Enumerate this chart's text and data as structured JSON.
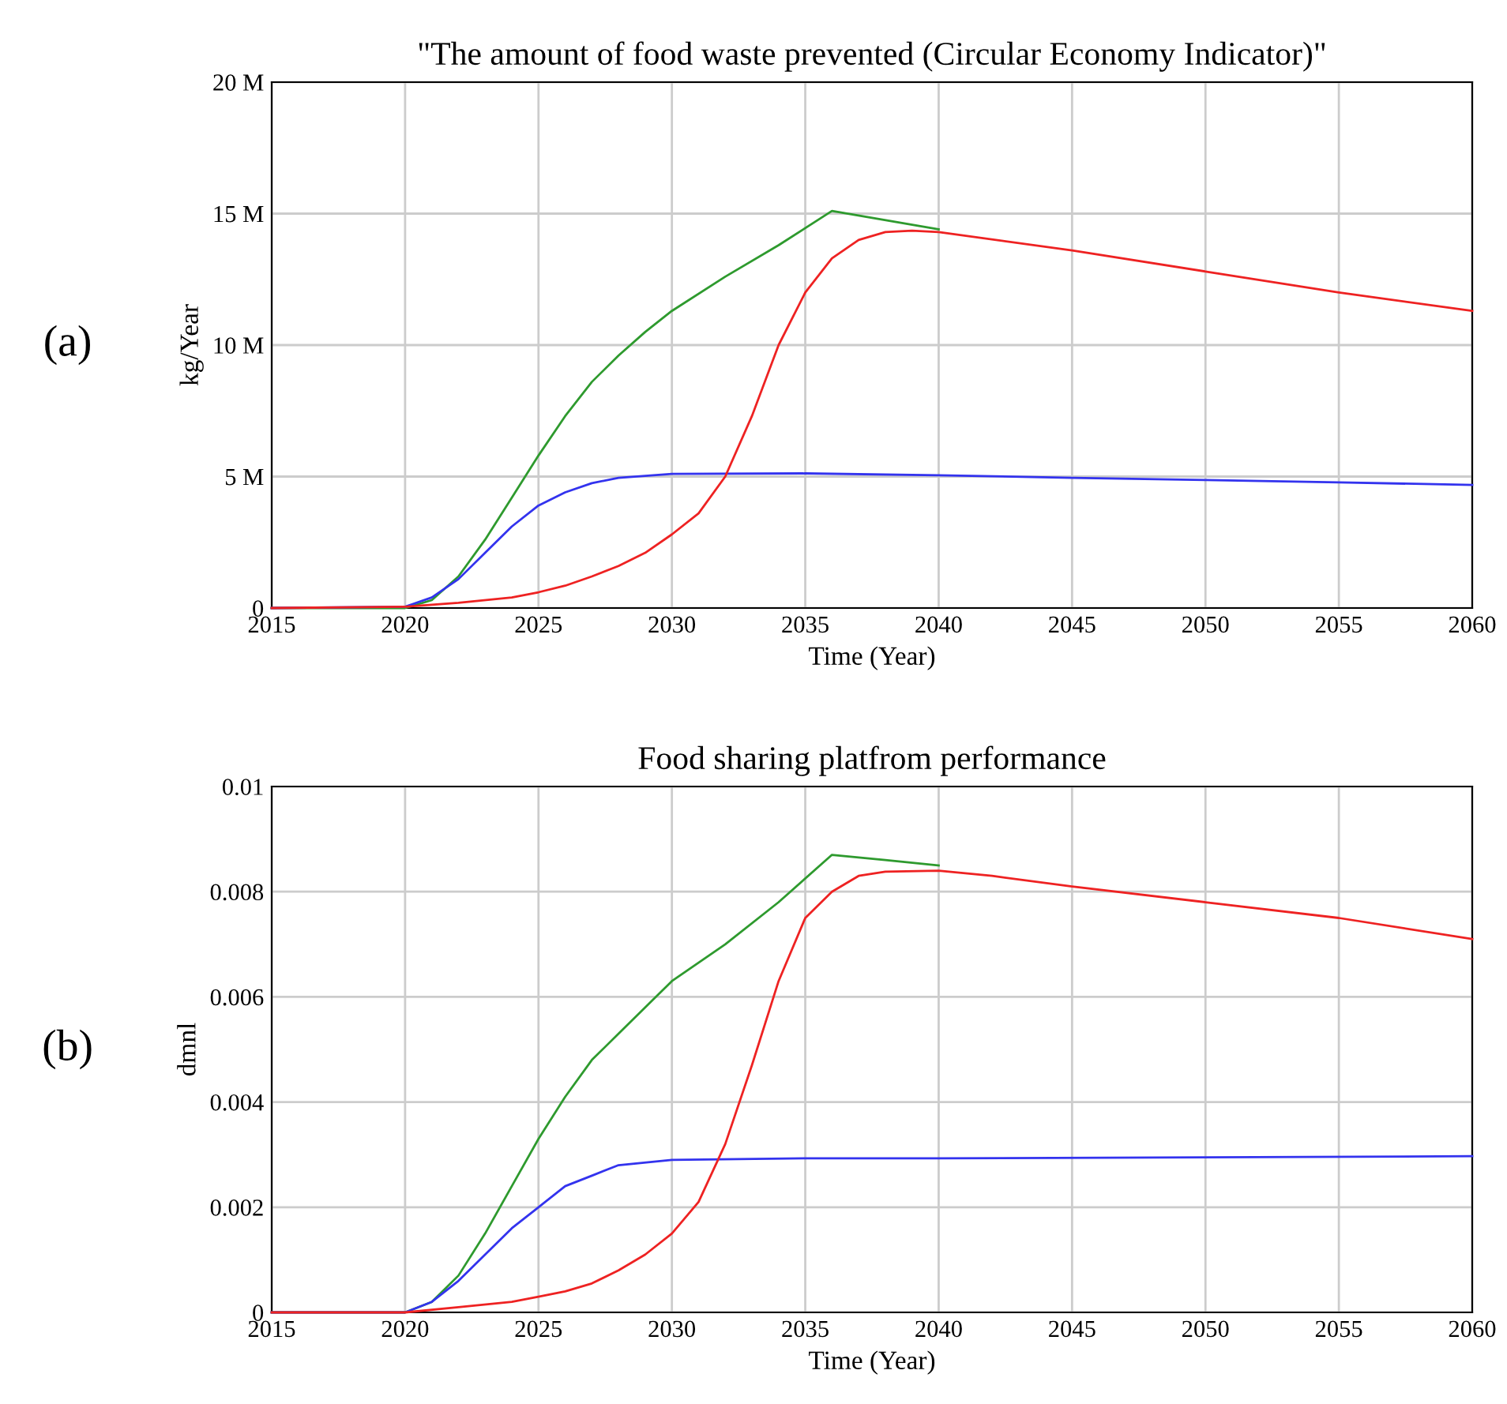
{
  "chart_data": [
    {
      "type": "line",
      "title": "\"The amount of food waste prevented (Circular Economy Indicator)\"",
      "xlabel": "Time (Year)",
      "ylabel": "kg/Year",
      "annotations": [
        "(a)"
      ],
      "grid": true,
      "legend": false,
      "xlim": [
        2015,
        2060
      ],
      "xticks": [
        2015,
        2020,
        2025,
        2030,
        2035,
        2040,
        2045,
        2050,
        2055,
        2060
      ],
      "ylim": [
        0,
        20000000
      ],
      "yticks": [
        {
          "value": 0,
          "label": "0"
        },
        {
          "value": 5000000,
          "label": "5 M"
        },
        {
          "value": 10000000,
          "label": "10 M"
        },
        {
          "value": 15000000,
          "label": "15 M"
        },
        {
          "value": 20000000,
          "label": "20 M"
        }
      ],
      "series": [
        {
          "color": "#2e9a2e",
          "x": [
            2015,
            2020,
            2021,
            2022,
            2023,
            2024,
            2025,
            2026,
            2027,
            2028,
            2029,
            2030,
            2032,
            2034,
            2036,
            2040
          ],
          "values": [
            0,
            0,
            300000,
            1200000,
            2600000,
            4200000,
            5800000,
            7300000,
            8600000,
            9600000,
            10500000,
            11300000,
            12600000,
            13800000,
            15100000,
            14400000
          ]
        },
        {
          "color": "#3333ee",
          "x": [
            2015,
            2020,
            2021,
            2022,
            2023,
            2024,
            2025,
            2026,
            2027,
            2028,
            2030,
            2035,
            2040,
            2045,
            2050,
            2055,
            2060
          ],
          "values": [
            0,
            50000,
            400000,
            1100000,
            2100000,
            3100000,
            3900000,
            4400000,
            4750000,
            4950000,
            5100000,
            5120000,
            5050000,
            4950000,
            4870000,
            4780000,
            4680000
          ]
        },
        {
          "color": "#ee2222",
          "x": [
            2015,
            2020,
            2022,
            2024,
            2025,
            2026,
            2027,
            2028,
            2029,
            2030,
            2031,
            2032,
            2033,
            2034,
            2035,
            2036,
            2037,
            2038,
            2039,
            2040,
            2045,
            2050,
            2055,
            2060
          ],
          "values": [
            0,
            50000,
            200000,
            400000,
            600000,
            850000,
            1200000,
            1600000,
            2100000,
            2800000,
            3600000,
            5000000,
            7300000,
            10000000,
            12000000,
            13300000,
            14000000,
            14300000,
            14350000,
            14300000,
            13600000,
            12800000,
            12000000,
            11300000
          ]
        }
      ]
    },
    {
      "type": "line",
      "title": "Food sharing platfrom performance",
      "xlabel": "Time (Year)",
      "ylabel": "dmnl",
      "annotations": [
        "(b)"
      ],
      "grid": true,
      "legend": false,
      "xlim": [
        2015,
        2060
      ],
      "xticks": [
        2015,
        2020,
        2025,
        2030,
        2035,
        2040,
        2045,
        2050,
        2055,
        2060
      ],
      "ylim": [
        0,
        0.01
      ],
      "yticks": [
        0,
        0.002,
        0.004,
        0.006,
        0.008,
        0.01
      ],
      "series": [
        {
          "color": "#2e9a2e",
          "x": [
            2015,
            2020,
            2021,
            2022,
            2023,
            2024,
            2025,
            2026,
            2027,
            2028,
            2029,
            2030,
            2032,
            2034,
            2036,
            2038,
            2040
          ],
          "values": [
            0,
            0,
            0.0002,
            0.0007,
            0.0015,
            0.0024,
            0.0033,
            0.0041,
            0.0048,
            0.0053,
            0.0058,
            0.0063,
            0.007,
            0.0078,
            0.0087,
            0.0086,
            0.0085
          ]
        },
        {
          "color": "#3333ee",
          "x": [
            2015,
            2020,
            2021,
            2022,
            2023,
            2024,
            2025,
            2026,
            2027,
            2028,
            2030,
            2035,
            2040,
            2050,
            2060
          ],
          "values": [
            0,
            0,
            0.0002,
            0.0006,
            0.0011,
            0.0016,
            0.002,
            0.0024,
            0.0026,
            0.0028,
            0.0029,
            0.00293,
            0.00293,
            0.00295,
            0.00297
          ]
        },
        {
          "color": "#ee2222",
          "x": [
            2015,
            2020,
            2022,
            2024,
            2025,
            2026,
            2027,
            2028,
            2029,
            2030,
            2031,
            2032,
            2033,
            2034,
            2035,
            2036,
            2037,
            2038,
            2040,
            2042,
            2045,
            2050,
            2055,
            2060
          ],
          "values": [
            0,
            0,
            0.0001,
            0.0002,
            0.0003,
            0.0004,
            0.00055,
            0.0008,
            0.0011,
            0.0015,
            0.0021,
            0.0032,
            0.0047,
            0.0063,
            0.0075,
            0.008,
            0.0083,
            0.00838,
            0.0084,
            0.0083,
            0.0081,
            0.0078,
            0.0075,
            0.0071
          ]
        }
      ]
    }
  ]
}
